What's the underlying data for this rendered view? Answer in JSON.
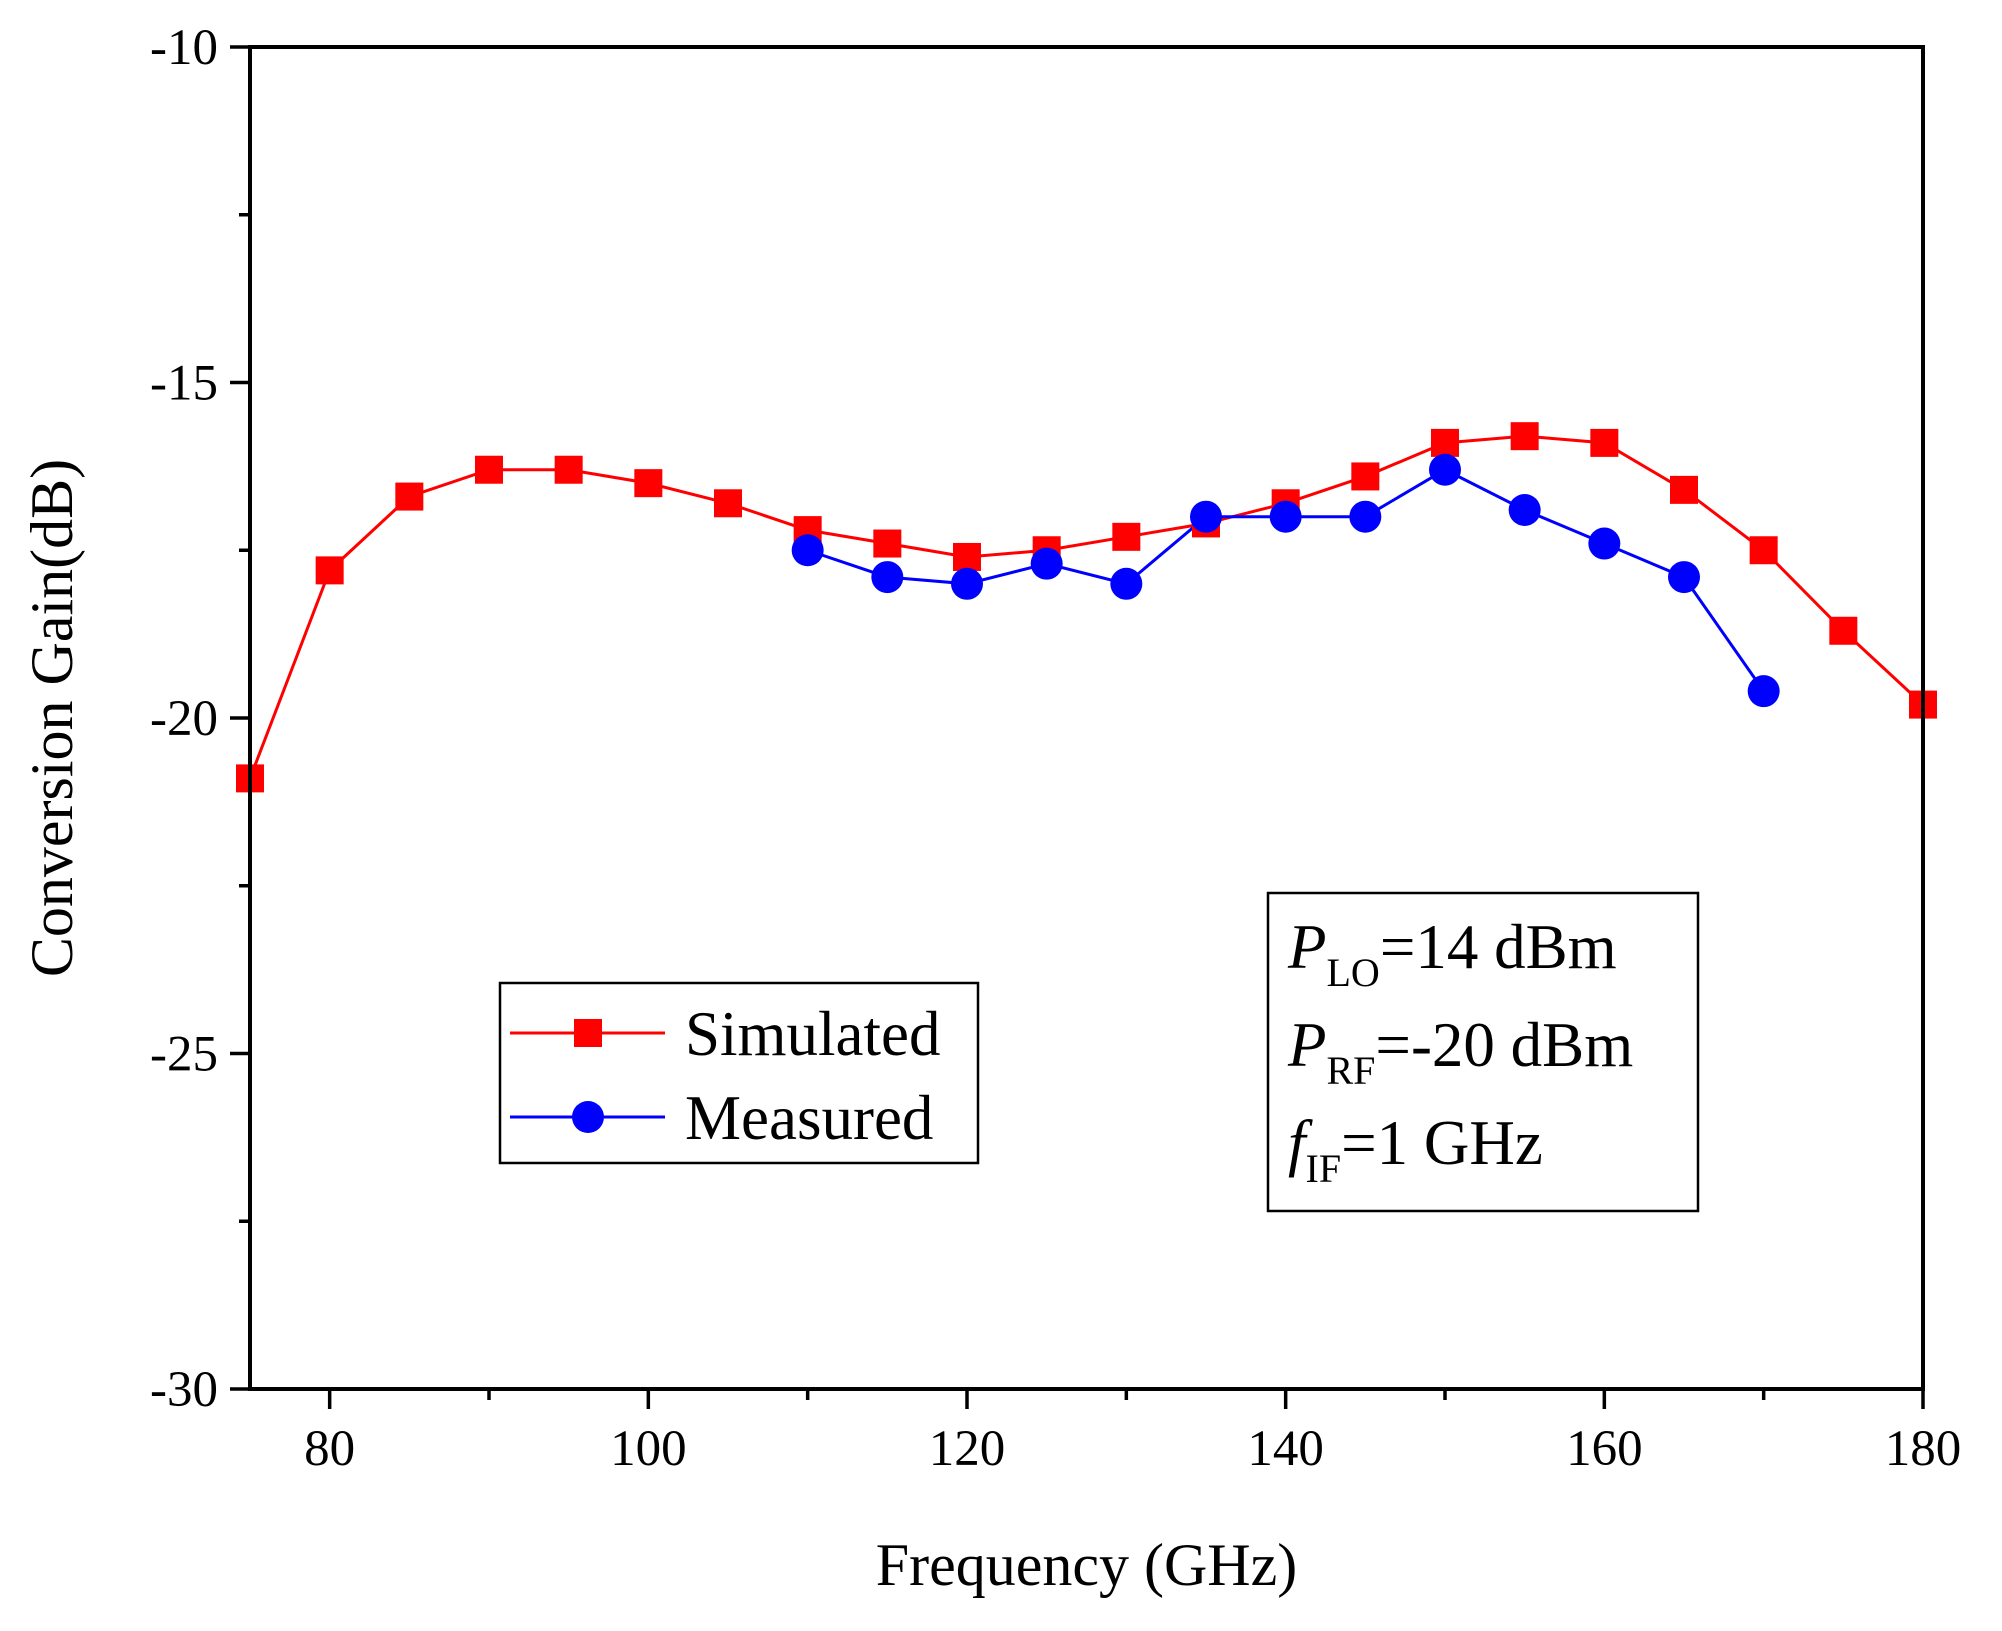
{
  "chart_data": {
    "type": "line",
    "xlabel": "Frequency (GHz)",
    "ylabel": "Conversion Gain(dB)",
    "xlim": [
      75,
      180
    ],
    "ylim": [
      -30,
      -10
    ],
    "xticks": [
      80,
      100,
      120,
      140,
      160,
      180
    ],
    "yticks": [
      -30,
      -25,
      -20,
      -15,
      -10
    ],
    "grid": false,
    "legend_position": "lower-left",
    "series": [
      {
        "name": "Simulated",
        "color": "#ff0000",
        "marker": "square",
        "x": [
          75,
          80,
          85,
          90,
          95,
          100,
          105,
          110,
          115,
          120,
          125,
          130,
          135,
          140,
          145,
          150,
          155,
          160,
          165,
          170,
          175,
          180
        ],
        "y": [
          -20.9,
          -17.8,
          -16.7,
          -16.3,
          -16.3,
          -16.5,
          -16.8,
          -17.2,
          -17.4,
          -17.6,
          -17.5,
          -17.3,
          -17.1,
          -16.8,
          -16.4,
          -15.9,
          -15.8,
          -15.9,
          -16.6,
          -17.5,
          -18.7,
          -19.8
        ]
      },
      {
        "name": "Measured",
        "color": "#0000ff",
        "marker": "circle",
        "x": [
          110,
          115,
          120,
          125,
          130,
          135,
          140,
          145,
          150,
          155,
          160,
          165,
          170
        ],
        "y": [
          -17.5,
          -17.9,
          -18.0,
          -17.7,
          -18.0,
          -17.0,
          -17.0,
          -17.0,
          -16.3,
          -16.9,
          -17.4,
          -17.9,
          -19.6
        ]
      }
    ],
    "annotation": {
      "lines": [
        {
          "sym": "P",
          "sub": "LO",
          "rest": "=14 dBm"
        },
        {
          "sym": "P",
          "sub": "RF",
          "rest": "=-20 dBm"
        },
        {
          "sym": "f",
          "sub": "IF",
          "rest": "=1 GHz"
        }
      ]
    }
  }
}
